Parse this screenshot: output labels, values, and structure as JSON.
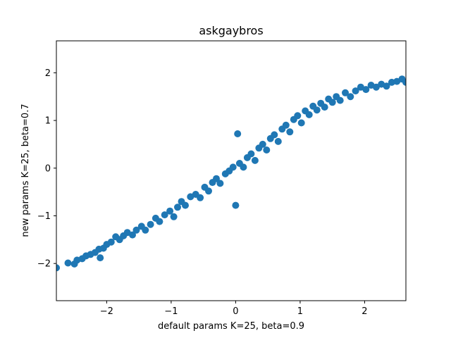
{
  "chart_data": {
    "type": "scatter",
    "title": "askgaybros",
    "xlabel": "default params K=25, beta=0.9",
    "ylabel": "new params K=25, beta=0.7",
    "xlim": [
      -2.78,
      2.64
    ],
    "ylim": [
      -2.78,
      2.67
    ],
    "xticks": [
      -2,
      -1,
      0,
      1,
      2
    ],
    "yticks": [
      -2,
      -1,
      0,
      1,
      2
    ],
    "xtick_labels": [
      "−2",
      "−1",
      "0",
      "1",
      "2"
    ],
    "ytick_labels": [
      "−2",
      "−1",
      "0",
      "1",
      "2"
    ],
    "grid": false,
    "marker_color": "#1f77b4",
    "series": [
      {
        "values_note": "",
        "points": [
          [
            -2.78,
            -2.09
          ],
          [
            -2.6,
            -1.99
          ],
          [
            -2.5,
            -2.01
          ],
          [
            -2.46,
            -1.93
          ],
          [
            -2.38,
            -1.9
          ],
          [
            -2.32,
            -1.84
          ],
          [
            -2.25,
            -1.81
          ],
          [
            -2.18,
            -1.77
          ],
          [
            -2.1,
            -1.88
          ],
          [
            -2.12,
            -1.7
          ],
          [
            -2.05,
            -1.68
          ],
          [
            -2.0,
            -1.6
          ],
          [
            -1.93,
            -1.55
          ],
          [
            -1.86,
            -1.44
          ],
          [
            -1.8,
            -1.5
          ],
          [
            -1.74,
            -1.42
          ],
          [
            -1.68,
            -1.35
          ],
          [
            -1.6,
            -1.4
          ],
          [
            -1.54,
            -1.3
          ],
          [
            -1.46,
            -1.22
          ],
          [
            -1.4,
            -1.3
          ],
          [
            -1.32,
            -1.18
          ],
          [
            -1.24,
            -1.05
          ],
          [
            -1.18,
            -1.12
          ],
          [
            -1.1,
            -0.98
          ],
          [
            -1.02,
            -0.9
          ],
          [
            -0.96,
            -1.02
          ],
          [
            -0.9,
            -0.82
          ],
          [
            -0.84,
            -0.7
          ],
          [
            -0.78,
            -0.78
          ],
          [
            -0.7,
            -0.6
          ],
          [
            -0.62,
            -0.55
          ],
          [
            -0.55,
            -0.62
          ],
          [
            -0.48,
            -0.4
          ],
          [
            -0.42,
            -0.48
          ],
          [
            -0.36,
            -0.3
          ],
          [
            -0.3,
            -0.22
          ],
          [
            -0.24,
            -0.32
          ],
          [
            -0.16,
            -0.12
          ],
          [
            -0.1,
            -0.06
          ],
          [
            -0.04,
            0.02
          ],
          [
            0.0,
            -0.78
          ],
          [
            0.03,
            0.72
          ],
          [
            0.06,
            0.1
          ],
          [
            0.12,
            0.02
          ],
          [
            0.18,
            0.22
          ],
          [
            0.24,
            0.3
          ],
          [
            0.3,
            0.16
          ],
          [
            0.36,
            0.42
          ],
          [
            0.42,
            0.5
          ],
          [
            0.48,
            0.38
          ],
          [
            0.54,
            0.62
          ],
          [
            0.6,
            0.7
          ],
          [
            0.66,
            0.56
          ],
          [
            0.72,
            0.82
          ],
          [
            0.78,
            0.9
          ],
          [
            0.84,
            0.76
          ],
          [
            0.9,
            1.02
          ],
          [
            0.96,
            1.1
          ],
          [
            1.02,
            0.95
          ],
          [
            1.08,
            1.2
          ],
          [
            1.14,
            1.12
          ],
          [
            1.2,
            1.3
          ],
          [
            1.26,
            1.22
          ],
          [
            1.32,
            1.36
          ],
          [
            1.38,
            1.28
          ],
          [
            1.44,
            1.45
          ],
          [
            1.5,
            1.38
          ],
          [
            1.56,
            1.5
          ],
          [
            1.62,
            1.42
          ],
          [
            1.7,
            1.58
          ],
          [
            1.78,
            1.5
          ],
          [
            1.86,
            1.62
          ],
          [
            1.94,
            1.7
          ],
          [
            2.02,
            1.65
          ],
          [
            2.1,
            1.74
          ],
          [
            2.18,
            1.7
          ],
          [
            2.26,
            1.76
          ],
          [
            2.34,
            1.72
          ],
          [
            2.42,
            1.8
          ],
          [
            2.5,
            1.82
          ],
          [
            2.58,
            1.87
          ],
          [
            2.64,
            1.8
          ]
        ]
      }
    ]
  }
}
